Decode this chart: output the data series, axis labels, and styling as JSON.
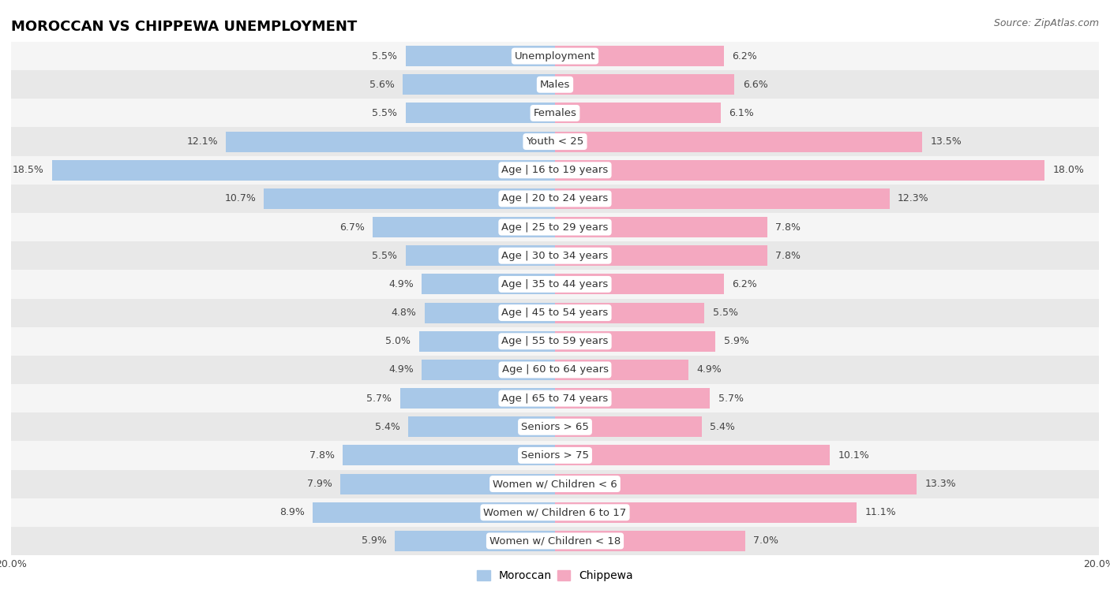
{
  "title": "MOROCCAN VS CHIPPEWA UNEMPLOYMENT",
  "source": "Source: ZipAtlas.com",
  "categories": [
    "Unemployment",
    "Males",
    "Females",
    "Youth < 25",
    "Age | 16 to 19 years",
    "Age | 20 to 24 years",
    "Age | 25 to 29 years",
    "Age | 30 to 34 years",
    "Age | 35 to 44 years",
    "Age | 45 to 54 years",
    "Age | 55 to 59 years",
    "Age | 60 to 64 years",
    "Age | 65 to 74 years",
    "Seniors > 65",
    "Seniors > 75",
    "Women w/ Children < 6",
    "Women w/ Children 6 to 17",
    "Women w/ Children < 18"
  ],
  "moroccan": [
    5.5,
    5.6,
    5.5,
    12.1,
    18.5,
    10.7,
    6.7,
    5.5,
    4.9,
    4.8,
    5.0,
    4.9,
    5.7,
    5.4,
    7.8,
    7.9,
    8.9,
    5.9
  ],
  "chippewa": [
    6.2,
    6.6,
    6.1,
    13.5,
    18.0,
    12.3,
    7.8,
    7.8,
    6.2,
    5.5,
    5.9,
    4.9,
    5.7,
    5.4,
    10.1,
    13.3,
    11.1,
    7.0
  ],
  "moroccan_color": "#a8c8e8",
  "chippewa_color": "#f4a8c0",
  "bar_height": 0.72,
  "xlim": 20.0,
  "row_bg_light": "#f5f5f5",
  "row_bg_dark": "#e8e8e8",
  "label_fontsize": 9.5,
  "value_fontsize": 9.0,
  "title_fontsize": 13,
  "source_fontsize": 9
}
